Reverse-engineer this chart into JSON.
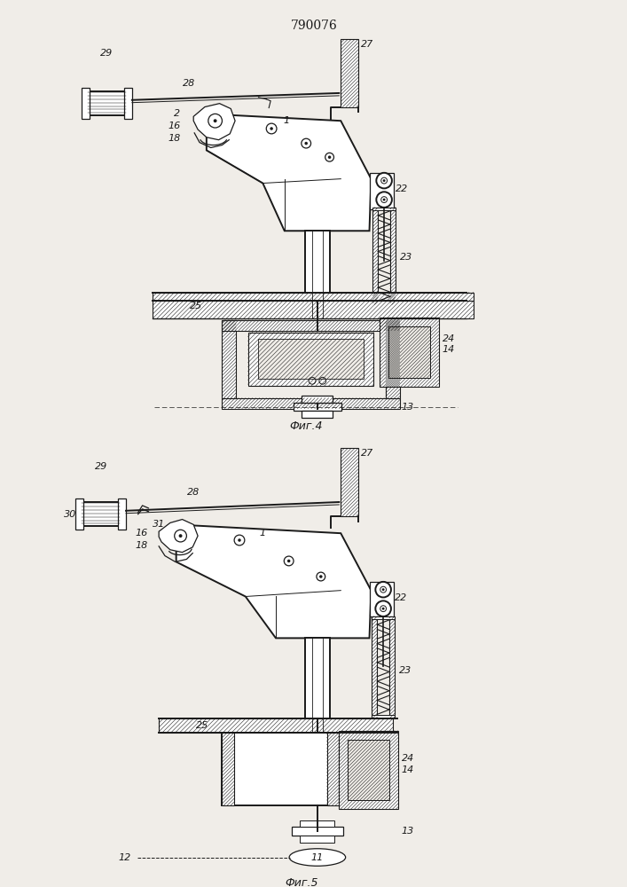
{
  "title": "790076",
  "bg_color": "#f0ede8",
  "line_color": "#1a1a1a",
  "fig4_caption": "Фиг.4",
  "fig5_caption": "Фиг.5"
}
